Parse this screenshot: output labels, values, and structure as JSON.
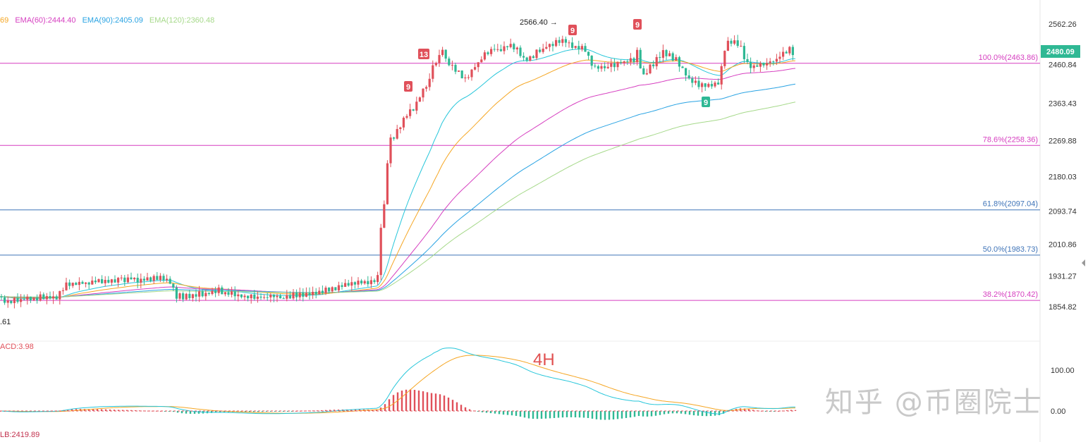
{
  "legend": {
    "fragment": "69",
    "ema60": "EMA(60):2444.40",
    "ema90": "EMA(90):2405.09",
    "ema120": "EMA(120):2360.48"
  },
  "colors": {
    "up": "#e0505a",
    "down": "#2fb894",
    "ema_a": "#26c6da",
    "ema_b": "#f5a623",
    "ema60": "#d63fc0",
    "ema90": "#29a3e3",
    "ema120": "#a6d98a",
    "fib_pink": "#d63fc0",
    "fib_blue": "#3f74b8",
    "price_tag_bg": "#2fb894",
    "macd_line": "#f5a623",
    "signal_line": "#26c6da"
  },
  "price_axis": {
    "ticks": [
      "2562.26",
      "2363.43",
      "2269.88",
      "2180.03",
      "2093.74",
      "2010.86",
      "1931.27",
      "1854.82"
    ],
    "hidden_tick": "2460.84",
    "current_price": "2480.09"
  },
  "fib_levels": [
    {
      "label": "100.0%(2463.86)",
      "value": 2463.86,
      "color": "pink"
    },
    {
      "label": "78.6%(2258.36)",
      "value": 2258.36,
      "color": "pink"
    },
    {
      "label": "61.8%(2097.04)",
      "value": 2097.04,
      "color": "blue"
    },
    {
      "label": "50.0%(1983.73)",
      "value": 1983.73,
      "color": "blue"
    },
    {
      "label": "38.2%(1870.42)",
      "value": 1870.42,
      "color": "pink"
    }
  ],
  "annotations": {
    "high_marker": "2566.40 →",
    "low_marker": ".61",
    "timeframe": "4H",
    "macd_label": "ACD:3.98",
    "lb_label": "LB:2419.89",
    "watermark": "知乎 @币圈院士",
    "td_counts": [
      {
        "text": "13",
        "kind": "sell"
      },
      {
        "text": "9",
        "kind": "sell"
      },
      {
        "text": "9",
        "kind": "sell"
      },
      {
        "text": "9",
        "kind": "sell"
      },
      {
        "text": "9",
        "kind": "buy"
      }
    ]
  },
  "macd_axis": {
    "ticks": [
      "100.00",
      "0.00"
    ]
  },
  "chart_data": {
    "type": "candlestick",
    "timeframe": "4H",
    "ylim": [
      1820,
      2600
    ],
    "macd_ylim": [
      -40,
      160
    ],
    "price_path": [
      [
        0,
        1880
      ],
      [
        12,
        1865
      ],
      [
        25,
        1872
      ],
      [
        40,
        1875
      ],
      [
        60,
        1878
      ],
      [
        80,
        1880
      ],
      [
        90,
        1905
      ],
      [
        100,
        1915
      ],
      [
        120,
        1912
      ],
      [
        140,
        1920
      ],
      [
        160,
        1918
      ],
      [
        180,
        1925
      ],
      [
        200,
        1922
      ],
      [
        220,
        1928
      ],
      [
        240,
        1920
      ],
      [
        250,
        1880
      ],
      [
        270,
        1882
      ],
      [
        290,
        1888
      ],
      [
        310,
        1895
      ],
      [
        330,
        1885
      ],
      [
        350,
        1880
      ],
      [
        370,
        1878
      ],
      [
        390,
        1880
      ],
      [
        410,
        1882
      ],
      [
        430,
        1885
      ],
      [
        450,
        1888
      ],
      [
        460,
        1898
      ],
      [
        480,
        1905
      ],
      [
        500,
        1910
      ],
      [
        520,
        1915
      ],
      [
        535,
        1918
      ],
      [
        540,
        2050
      ],
      [
        545,
        2110
      ],
      [
        550,
        2230
      ],
      [
        555,
        2290
      ],
      [
        560,
        2280
      ],
      [
        570,
        2320
      ],
      [
        580,
        2340
      ],
      [
        590,
        2360
      ],
      [
        600,
        2395
      ],
      [
        610,
        2420
      ],
      [
        615,
        2480
      ],
      [
        620,
        2450
      ],
      [
        625,
        2520
      ],
      [
        630,
        2470
      ],
      [
        640,
        2460
      ],
      [
        650,
        2440
      ],
      [
        660,
        2420
      ],
      [
        670,
        2450
      ],
      [
        680,
        2470
      ],
      [
        690,
        2490
      ],
      [
        700,
        2500
      ],
      [
        710,
        2495
      ],
      [
        720,
        2510
      ],
      [
        730,
        2505
      ],
      [
        740,
        2480
      ],
      [
        750,
        2470
      ],
      [
        760,
        2490
      ],
      [
        770,
        2500
      ],
      [
        780,
        2510
      ],
      [
        790,
        2515
      ],
      [
        800,
        2520
      ],
      [
        810,
        2510
      ],
      [
        820,
        2505
      ],
      [
        830,
        2495
      ],
      [
        840,
        2460
      ],
      [
        850,
        2450
      ],
      [
        860,
        2455
      ],
      [
        870,
        2460
      ],
      [
        880,
        2465
      ],
      [
        890,
        2470
      ],
      [
        900,
        2475
      ],
      [
        905,
        2505
      ],
      [
        910,
        2430
      ],
      [
        920,
        2450
      ],
      [
        930,
        2470
      ],
      [
        940,
        2490
      ],
      [
        950,
        2485
      ],
      [
        960,
        2470
      ],
      [
        970,
        2440
      ],
      [
        980,
        2420
      ],
      [
        990,
        2410
      ],
      [
        1000,
        2405
      ],
      [
        1010,
        2410
      ],
      [
        1020,
        2420
      ],
      [
        1030,
        2520
      ],
      [
        1040,
        2515
      ],
      [
        1050,
        2505
      ],
      [
        1060,
        2460
      ],
      [
        1070,
        2455
      ],
      [
        1080,
        2460
      ],
      [
        1090,
        2465
      ],
      [
        1100,
        2470
      ],
      [
        1110,
        2490
      ],
      [
        1120,
        2500
      ],
      [
        1128,
        2480.09
      ]
    ],
    "ema_series": [
      {
        "name": "EMA(60)",
        "value": 2444.4
      },
      {
        "name": "EMA(90)",
        "value": 2405.09
      },
      {
        "name": "EMA(120)",
        "value": 2360.48
      }
    ]
  }
}
